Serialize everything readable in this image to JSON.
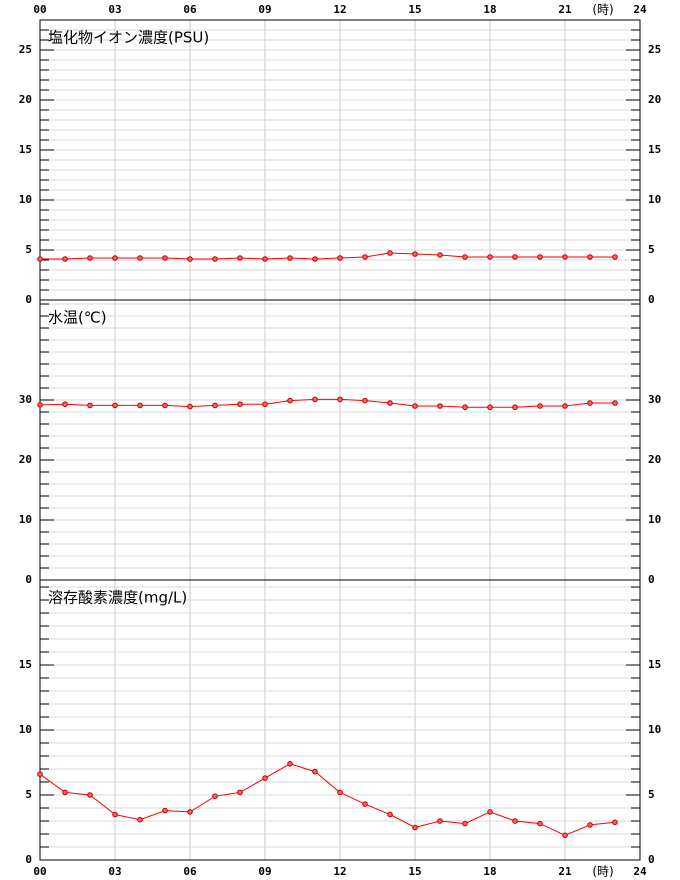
{
  "chart_data": [
    {
      "type": "line",
      "title": "塩化物イオン濃度(PSU)",
      "color": "#ff0000",
      "x": [
        0,
        1,
        2,
        3,
        4,
        5,
        6,
        7,
        8,
        9,
        10,
        11,
        12,
        13,
        14,
        15,
        16,
        17,
        18,
        19,
        20,
        21,
        22,
        23
      ],
      "values": [
        4.1,
        4.1,
        4.2,
        4.2,
        4.2,
        4.2,
        4.1,
        4.1,
        4.2,
        4.1,
        4.2,
        4.1,
        4.2,
        4.3,
        4.7,
        4.6,
        4.5,
        4.3,
        4.3,
        4.3,
        4.3,
        4.3,
        4.3,
        4.3
      ],
      "xlim": [
        0,
        24
      ],
      "xticks": [
        {
          "value": 0,
          "label": "00"
        },
        {
          "value": 3,
          "label": "03"
        },
        {
          "value": 6,
          "label": "06"
        },
        {
          "value": 9,
          "label": "09"
        },
        {
          "value": 12,
          "label": "12"
        },
        {
          "value": 15,
          "label": "15"
        },
        {
          "value": 18,
          "label": "18"
        },
        {
          "value": 21,
          "label": "21"
        },
        24
      ],
      "x_unit": "(時)",
      "ylim": [
        0,
        28
      ],
      "yticks": [
        0,
        5,
        10,
        15,
        20,
        25
      ],
      "yminor_step": 1,
      "grid": true
    },
    {
      "type": "line",
      "title": "水温(℃)",
      "color": "#ff0000",
      "x": [
        0,
        1,
        2,
        3,
        4,
        5,
        6,
        7,
        8,
        9,
        10,
        11,
        12,
        13,
        14,
        15,
        16,
        17,
        18,
        19,
        20,
        21,
        22,
        23
      ],
      "values": [
        29.2,
        29.3,
        29.1,
        29.1,
        29.1,
        29.1,
        28.9,
        29.1,
        29.3,
        29.3,
        29.9,
        30.1,
        30.1,
        29.9,
        29.5,
        29.0,
        29.0,
        28.8,
        28.8,
        28.8,
        29.0,
        29.0,
        29.5,
        29.5
      ],
      "xlim": [
        0,
        24
      ],
      "ylim": [
        0,
        46.67
      ],
      "yticks": [
        0,
        10,
        20,
        30
      ],
      "yminor_step": 2,
      "grid": true
    },
    {
      "type": "line",
      "title": "溶存酸素濃度(mg/L)",
      "color": "#ff0000",
      "x": [
        0,
        1,
        2,
        3,
        4,
        5,
        6,
        7,
        8,
        9,
        10,
        11,
        12,
        13,
        14,
        15,
        16,
        17,
        18,
        19,
        20,
        21,
        22,
        23
      ],
      "values": [
        6.6,
        5.2,
        5.0,
        3.5,
        3.1,
        3.8,
        3.7,
        4.9,
        5.2,
        6.3,
        7.4,
        6.8,
        5.2,
        4.3,
        3.5,
        2.5,
        3.0,
        2.8,
        3.7,
        3.0,
        2.8,
        1.9,
        2.7,
        2.9
      ],
      "xlim": [
        0,
        24
      ],
      "xticks": [
        {
          "value": 0,
          "label": "00"
        },
        {
          "value": 3,
          "label": "03"
        },
        {
          "value": 6,
          "label": "06"
        },
        {
          "value": 9,
          "label": "09"
        },
        {
          "value": 12,
          "label": "12"
        },
        {
          "value": 15,
          "label": "15"
        },
        {
          "value": 18,
          "label": "18"
        },
        {
          "value": 21,
          "label": "21"
        },
        24
      ],
      "x_unit": "(時)",
      "ylim": [
        0,
        21.54
      ],
      "yticks": [
        0,
        5,
        10,
        15
      ],
      "yminor_step": 1,
      "grid": true
    }
  ]
}
